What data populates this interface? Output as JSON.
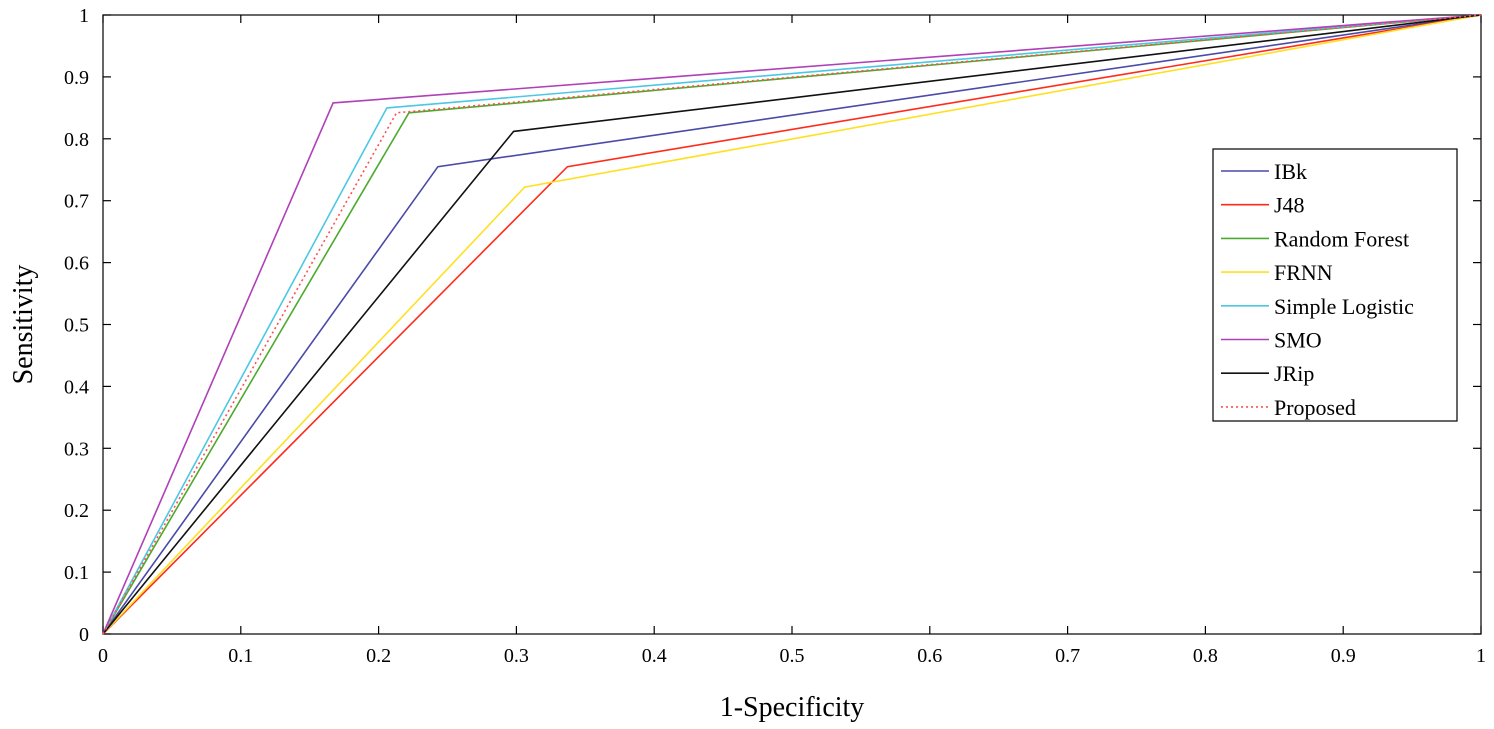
{
  "chart_data": {
    "type": "line",
    "title": "",
    "xlabel": "1-Specificity",
    "ylabel": "Sensitivity",
    "xlim": [
      0,
      1
    ],
    "ylim": [
      0,
      1
    ],
    "xticks": [
      0,
      0.1,
      0.2,
      0.3,
      0.4,
      0.5,
      0.6,
      0.7,
      0.8,
      0.9,
      1
    ],
    "yticks": [
      0,
      0.1,
      0.2,
      0.3,
      0.4,
      0.5,
      0.6,
      0.7,
      0.8,
      0.9,
      1
    ],
    "xtick_labels": [
      "0",
      "0.1",
      "0.2",
      "0.3",
      "0.4",
      "0.5",
      "0.6",
      "0.7",
      "0.8",
      "0.9",
      "1"
    ],
    "ytick_labels": [
      "0",
      "0.1",
      "0.2",
      "0.3",
      "0.4",
      "0.5",
      "0.6",
      "0.7",
      "0.8",
      "0.9",
      "1"
    ],
    "grid": false,
    "legend_position": "right",
    "series": [
      {
        "name": "IBk",
        "color": "#4a4aa8",
        "dash": "solid",
        "x": [
          0,
          0.243,
          1
        ],
        "y": [
          0,
          0.755,
          1
        ]
      },
      {
        "name": "J48",
        "color": "#ff2a1a",
        "dash": "solid",
        "x": [
          0,
          0.337,
          1
        ],
        "y": [
          0,
          0.755,
          1
        ]
      },
      {
        "name": "Random Forest",
        "color": "#4caa2c",
        "dash": "solid",
        "x": [
          0,
          0.222,
          1
        ],
        "y": [
          0,
          0.842,
          1
        ]
      },
      {
        "name": "FRNN",
        "color": "#ffe020",
        "dash": "solid",
        "x": [
          0,
          0.306,
          1
        ],
        "y": [
          0,
          0.722,
          1
        ]
      },
      {
        "name": "Simple Logistic",
        "color": "#4cc8e4",
        "dash": "solid",
        "x": [
          0,
          0.206,
          1
        ],
        "y": [
          0,
          0.85,
          1
        ]
      },
      {
        "name": "SMO",
        "color": "#b040b8",
        "dash": "solid",
        "x": [
          0,
          0.167,
          1
        ],
        "y": [
          0,
          0.858,
          1
        ]
      },
      {
        "name": "JRip",
        "color": "#111111",
        "dash": "solid",
        "x": [
          0,
          0.298,
          1
        ],
        "y": [
          0,
          0.812,
          1
        ]
      },
      {
        "name": "Proposed",
        "color": "#ff5050",
        "dash": "dotted",
        "x": [
          0,
          0.213,
          1
        ],
        "y": [
          0,
          0.842,
          1
        ]
      }
    ]
  }
}
